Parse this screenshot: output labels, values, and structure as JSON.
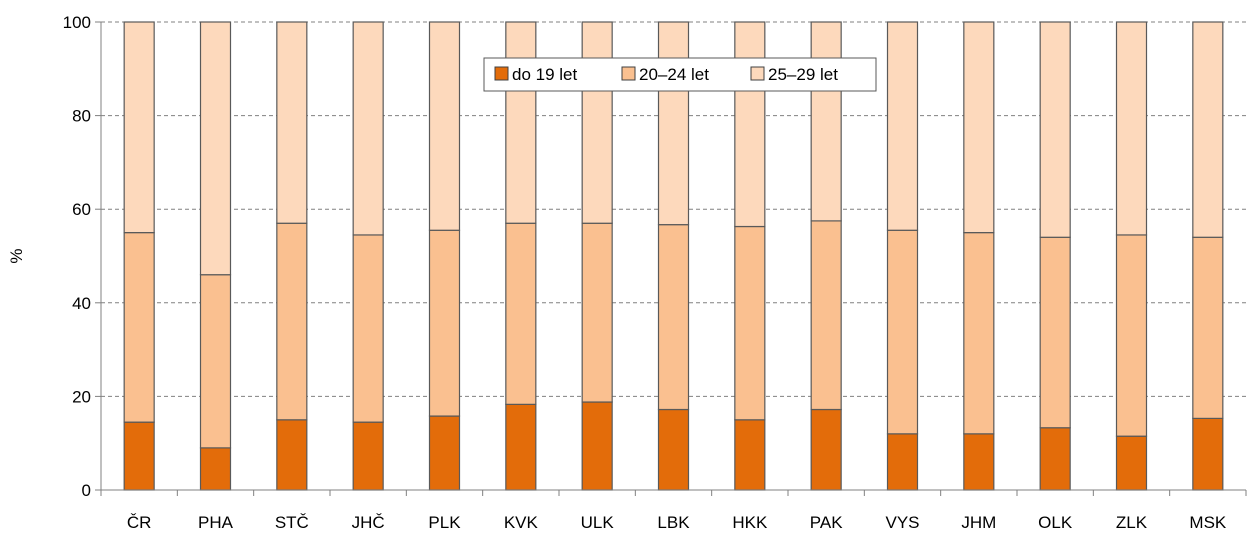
{
  "chart_data": {
    "type": "bar",
    "stacked": true,
    "title": "",
    "xlabel": "",
    "ylabel": "%",
    "ylim": [
      0,
      100
    ],
    "yticks": [
      0,
      20,
      40,
      60,
      80,
      100
    ],
    "grid": "horizontal dashed",
    "legend_position": "top-center",
    "categories": [
      "ČR",
      "PHA",
      "STČ",
      "JHČ",
      "PLK",
      "KVK",
      "ULK",
      "LBK",
      "HKK",
      "PAK",
      "VYS",
      "JHM",
      "OLK",
      "ZLK",
      "MSK"
    ],
    "series": [
      {
        "name": "do 19 let",
        "color": "#e36c0a",
        "values": [
          14.5,
          9.0,
          15.0,
          14.5,
          15.8,
          18.3,
          18.8,
          17.2,
          15.0,
          17.2,
          12.0,
          12.0,
          13.3,
          11.5,
          15.3
        ]
      },
      {
        "name": "20–24 let",
        "color": "#fac090",
        "values": [
          40.5,
          37.0,
          42.0,
          40.0,
          39.7,
          38.7,
          38.2,
          39.5,
          41.3,
          40.3,
          43.5,
          43.0,
          40.7,
          43.0,
          38.7
        ]
      },
      {
        "name": "25–29 let",
        "color": "#fdd9bc",
        "values": [
          45.0,
          54.0,
          43.0,
          45.5,
          44.5,
          43.0,
          43.0,
          43.3,
          43.7,
          42.5,
          44.5,
          45.0,
          46.0,
          45.5,
          46.0
        ]
      }
    ]
  }
}
